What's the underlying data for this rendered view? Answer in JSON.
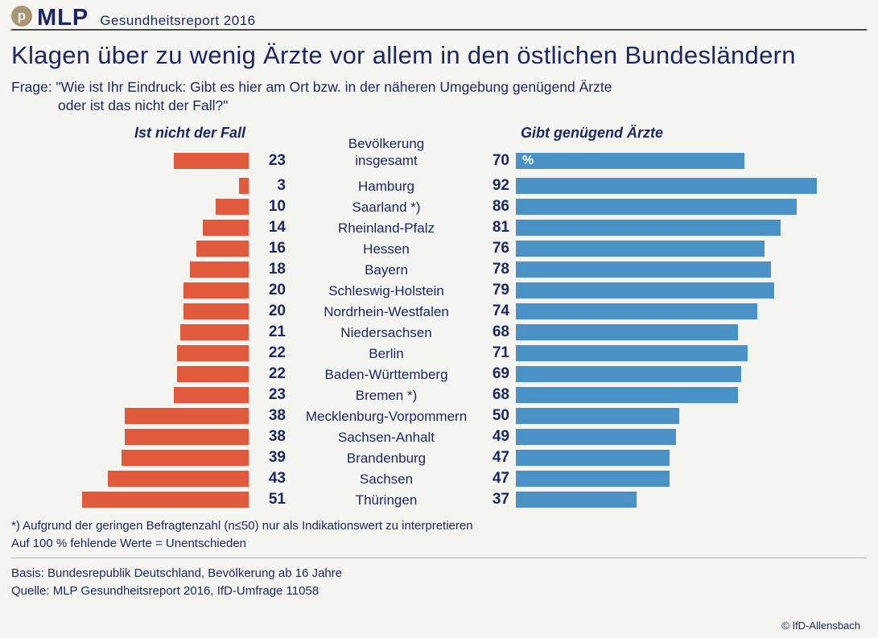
{
  "header": {
    "brand": "MLP",
    "report": "Gesundheitsreport 2016",
    "logo_glyph": "p",
    "logo_color": "#a89674"
  },
  "title": "Klagen über zu wenig Ärzte vor allem in den östlichen Bundesländern",
  "question": {
    "line1": "Frage: \"Wie ist Ihr Eindruck: Gibt es hier am Ort bzw. in der näheren Umgebung genügend Ärzte",
    "line2": "oder ist das nicht der Fall?\""
  },
  "chart_data": {
    "type": "bar",
    "orientation": "horizontal-bidirectional",
    "left_header": "Ist nicht der Fall",
    "right_header": "Gibt genügend Ärzte",
    "unit_label": "%",
    "value_range": [
      0,
      100
    ],
    "categories": [
      "Bevölkerung insgesamt",
      "Hamburg",
      "Saarland *)",
      "Rheinland-Pfalz",
      "Hessen",
      "Bayern",
      "Schleswig-Holstein",
      "Nordrhein-Westfalen",
      "Niedersachsen",
      "Berlin",
      "Baden-Württemberg",
      "Bremen *)",
      "Mecklenburg-Vorpommern",
      "Sachsen-Anhalt",
      "Brandenburg",
      "Sachsen",
      "Thüringen"
    ],
    "series": [
      {
        "name": "Ist nicht der Fall",
        "color": "#e15a3c",
        "values": [
          23,
          3,
          10,
          14,
          16,
          18,
          20,
          20,
          21,
          22,
          22,
          23,
          38,
          38,
          39,
          43,
          51
        ]
      },
      {
        "name": "Gibt genügend Ärzte",
        "color": "#4a92c5",
        "values": [
          70,
          92,
          86,
          81,
          76,
          78,
          79,
          74,
          68,
          71,
          69,
          68,
          50,
          49,
          47,
          47,
          37
        ]
      }
    ]
  },
  "footnotes": [
    "*) Aufgrund der geringen Befragtenzahl (n≤50) nur als Indikationswert zu interpretieren",
    "Auf 100 % fehlende Werte = Unentschieden"
  ],
  "footer": {
    "basis": "Basis: Bundesrepublik Deutschland, Bevölkerung ab 16 Jahre",
    "quelle": "Quelle: MLP Gesundheitsreport 2016, IfD-Umfrage 11058",
    "copyright": "© IfD-Allensbach"
  }
}
